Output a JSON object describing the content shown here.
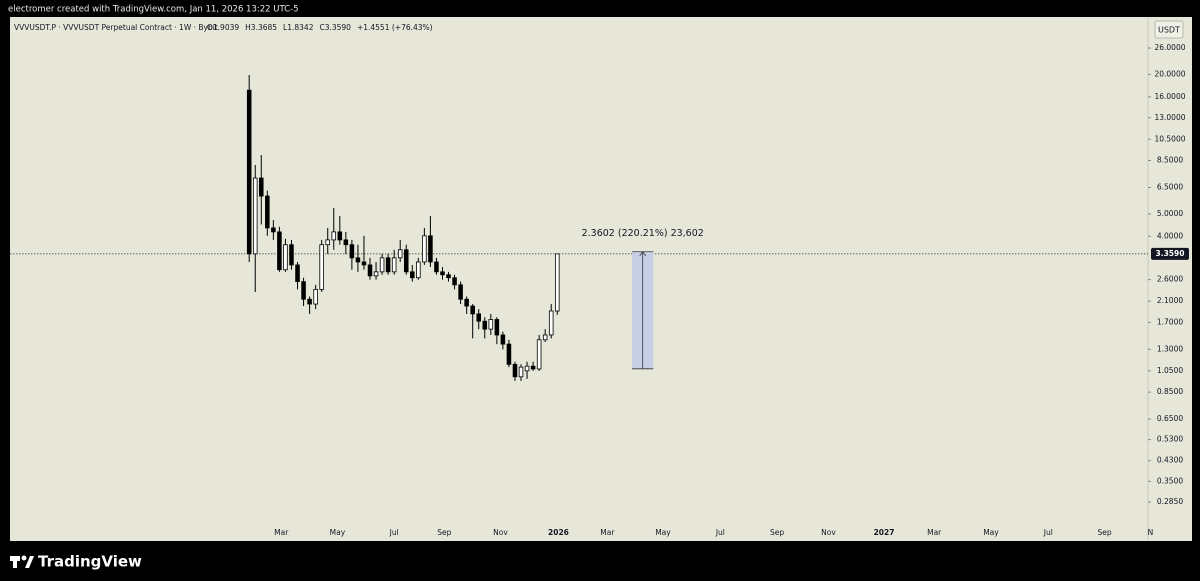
{
  "header": {
    "credit": "electromer created with TradingView.com, Jan 11, 2026 13:22 UTC-5"
  },
  "footer": {
    "brand": "TradingView"
  },
  "chart_data": {
    "type": "candlestick",
    "symbol": "VVVUSDT.P · VVVUSDT Perpetual Contract · 1W · Bybit",
    "ohlc_labels": [
      "O1.9039",
      "H3.3685",
      "L1.8342",
      "C3.3590"
    ],
    "change_label": "+1.4551 (+76.43%)",
    "currency": "USDT",
    "log": true,
    "up_color": "#ffffff",
    "down_color": "#000000",
    "wick_color": "#000000",
    "x": [
      0,
      1,
      2,
      3,
      4,
      5,
      6,
      7,
      8,
      9,
      10,
      11,
      12,
      13,
      14,
      15,
      16,
      17,
      18,
      19,
      20,
      21,
      22,
      23,
      24,
      25,
      26,
      27,
      28,
      29,
      30,
      31,
      32,
      33,
      34,
      35,
      36,
      37,
      38,
      39,
      40,
      41,
      42,
      43,
      44,
      45,
      46,
      47,
      48,
      49,
      50,
      51
    ],
    "open": [
      17.1,
      3.36,
      7.14,
      5.97,
      4.35,
      4.18,
      2.87,
      3.68,
      3.01,
      2.55,
      2.14,
      2.04,
      2.36,
      3.68,
      3.86,
      4.18,
      3.86,
      3.68,
      3.23,
      3.1,
      3.01,
      2.7,
      2.81,
      3.23,
      2.81,
      3.23,
      3.5,
      2.81,
      2.65,
      3.1,
      4.02,
      3.1,
      2.81,
      2.73,
      2.65,
      2.47,
      2.14,
      2.0,
      1.85,
      1.72,
      1.59,
      1.75,
      1.5,
      1.37,
      1.12,
      0.99,
      1.05,
      1.1,
      1.07,
      1.43,
      1.5,
      1.9039
    ],
    "high": [
      19.9,
      8.13,
      8.97,
      6.3,
      4.7,
      4.4,
      3.9,
      3.86,
      3.1,
      2.65,
      2.2,
      2.47,
      3.86,
      4.35,
      5.3,
      4.9,
      4.18,
      3.86,
      3.68,
      4.02,
      3.23,
      3.1,
      3.36,
      3.36,
      3.5,
      3.86,
      3.68,
      3.01,
      3.23,
      4.35,
      4.9,
      3.23,
      2.95,
      2.81,
      2.73,
      2.55,
      2.2,
      2.04,
      1.94,
      1.79,
      1.85,
      1.79,
      1.55,
      1.43,
      1.15,
      1.12,
      1.15,
      1.15,
      1.5,
      1.59,
      2.04,
      3.3685
    ],
    "low": [
      3.1,
      2.3,
      4.5,
      4.02,
      3.86,
      2.81,
      2.81,
      2.87,
      2.36,
      2.0,
      1.85,
      1.94,
      2.3,
      3.36,
      3.5,
      3.68,
      3.36,
      2.87,
      2.81,
      2.87,
      2.6,
      2.6,
      2.73,
      2.73,
      2.73,
      3.1,
      2.73,
      2.55,
      2.6,
      3.01,
      2.95,
      2.73,
      2.6,
      2.55,
      2.36,
      2.04,
      1.85,
      1.45,
      1.59,
      1.45,
      1.5,
      1.37,
      1.3,
      1.09,
      0.95,
      0.95,
      0.97,
      1.05,
      1.05,
      1.4,
      1.45,
      1.8342
    ],
    "close": [
      3.36,
      7.14,
      5.97,
      4.35,
      4.18,
      2.87,
      3.68,
      3.01,
      2.55,
      2.14,
      2.04,
      2.36,
      3.68,
      3.86,
      4.18,
      3.86,
      3.68,
      3.23,
      3.1,
      3.01,
      2.7,
      2.81,
      3.23,
      2.81,
      3.23,
      3.5,
      2.81,
      2.65,
      3.1,
      4.02,
      3.1,
      2.81,
      2.73,
      2.65,
      2.47,
      2.14,
      2.0,
      1.85,
      1.72,
      1.59,
      1.75,
      1.5,
      1.37,
      1.12,
      0.99,
      1.09,
      1.1,
      1.07,
      1.43,
      1.5,
      1.9039,
      3.359
    ],
    "last_price": {
      "value": 3.359,
      "label": "3.3590"
    },
    "measurement": {
      "label": "2.3602 (220.21%) 23,602",
      "from": 1.0718,
      "to": 3.432,
      "x_range": [
        63.4,
        66.9
      ]
    },
    "xlim": [
      -39.6,
      148.8
    ],
    "ylim": [
      0.2095,
      35.4
    ],
    "xticks": [
      {
        "value": 5.3,
        "label": "Mar"
      },
      {
        "value": 14.6,
        "label": "May"
      },
      {
        "value": 24.0,
        "label": "Jul"
      },
      {
        "value": 32.3,
        "label": "Sep"
      },
      {
        "value": 41.6,
        "label": "Nov"
      },
      {
        "value": 51.2,
        "label": "2026"
      },
      {
        "value": 59.3,
        "label": "Mar"
      },
      {
        "value": 68.5,
        "label": "May"
      },
      {
        "value": 78.0,
        "label": "Jul"
      },
      {
        "value": 87.4,
        "label": "Sep"
      },
      {
        "value": 95.9,
        "label": "Nov"
      },
      {
        "value": 105.1,
        "label": "2027"
      },
      {
        "value": 113.4,
        "label": "Mar"
      },
      {
        "value": 122.8,
        "label": "May"
      },
      {
        "value": 132.3,
        "label": "Jul"
      },
      {
        "value": 141.6,
        "label": "Sep"
      },
      {
        "value": 149.2,
        "label": "N"
      }
    ],
    "yticks": [
      {
        "value": 26,
        "label": "26.0000"
      },
      {
        "value": 20,
        "label": "20.0000"
      },
      {
        "value": 16,
        "label": "16.0000"
      },
      {
        "value": 13,
        "label": "13.0000"
      },
      {
        "value": 10.5,
        "label": "10.5000"
      },
      {
        "value": 8.5,
        "label": "8.5000"
      },
      {
        "value": 6.5,
        "label": "6.5000"
      },
      {
        "value": 5,
        "label": "5.0000"
      },
      {
        "value": 4,
        "label": "4.0000"
      },
      {
        "value": 2.6,
        "label": "2.6000"
      },
      {
        "value": 2.1,
        "label": "2.1000"
      },
      {
        "value": 1.7,
        "label": "1.7000"
      },
      {
        "value": 1.3,
        "label": "1.3000"
      },
      {
        "value": 1.05,
        "label": "1.0500"
      },
      {
        "value": 0.85,
        "label": "0.8500"
      },
      {
        "value": 0.65,
        "label": "0.6500"
      },
      {
        "value": 0.53,
        "label": "0.5300"
      },
      {
        "value": 0.43,
        "label": "0.4300"
      },
      {
        "value": 0.35,
        "label": "0.3500"
      },
      {
        "value": 0.285,
        "label": "0.2850"
      }
    ],
    "grid": false
  }
}
